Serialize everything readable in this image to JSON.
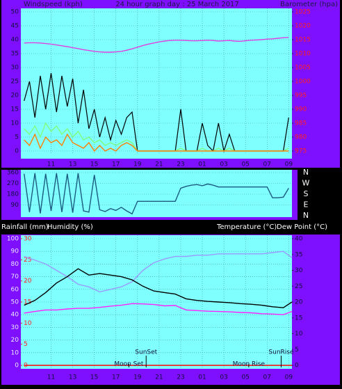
{
  "chart_data": [
    {
      "type": "line",
      "title": "24 hour graph day : 25 March 2017",
      "y_label": "Windspeed (kph)",
      "y2_label": "Barometer (hpa)",
      "x": [
        8.5,
        9,
        9.5,
        10,
        10.5,
        11,
        11.5,
        12,
        12.5,
        13,
        13.5,
        14,
        14.5,
        15,
        15.5,
        16,
        16.5,
        17,
        17.5,
        18,
        18.5,
        19,
        19.5,
        20,
        20.5,
        21,
        21.5,
        22,
        22.5,
        23,
        23.5,
        24,
        24.5,
        25,
        25.5,
        26,
        26.5,
        27,
        27.5,
        28,
        28.5,
        29,
        29.5,
        30,
        30.5,
        31,
        31.5,
        32,
        32.5,
        33
      ],
      "xlim": [
        8.2,
        33.3
      ],
      "xticks": [
        11,
        13,
        15,
        17,
        19,
        21,
        23,
        {
          "value": 25,
          "label": "01"
        },
        {
          "value": 27,
          "label": "03"
        },
        {
          "value": 29,
          "label": "05"
        },
        {
          "value": 31,
          "label": "07"
        },
        {
          "value": 33,
          "label": "09"
        }
      ],
      "ylim": [
        0,
        50
      ],
      "yticks": [
        0,
        5,
        10,
        15,
        20,
        25,
        30,
        35,
        40,
        45,
        50
      ],
      "y2lim": [
        975,
        1025
      ],
      "y2ticks": [
        975,
        980,
        985,
        990,
        995,
        1000,
        1005,
        1010,
        1015,
        1020,
        1025
      ],
      "grid": true,
      "series": [
        {
          "color": "#000000",
          "values": [
            18,
            25,
            12,
            27,
            15,
            28,
            14,
            27,
            16,
            26,
            10,
            22,
            8,
            15,
            5,
            12,
            4,
            11,
            6,
            12,
            14,
            0,
            0,
            0,
            0,
            0,
            0,
            0,
            0,
            15,
            0,
            0,
            0,
            10,
            2,
            0,
            10,
            0,
            6,
            0,
            0,
            0,
            0,
            0,
            0,
            0,
            0,
            0,
            0,
            12
          ]
        },
        {
          "color": "#80ff80",
          "values": [
            8,
            6,
            9,
            5,
            10,
            7,
            9,
            6,
            8,
            5,
            7,
            4,
            5,
            3,
            4,
            2,
            3,
            2,
            3,
            4,
            3,
            0,
            0,
            0,
            0,
            0,
            0,
            0,
            0,
            1,
            0,
            0,
            0,
            1,
            0,
            0,
            1,
            0,
            1,
            0,
            0,
            0,
            0,
            0,
            0,
            0,
            0,
            0,
            0,
            1
          ]
        },
        {
          "color": "#ff8000",
          "values": [
            4,
            2,
            6,
            1,
            5,
            3,
            4,
            2,
            6,
            3,
            2,
            1,
            3,
            0,
            2,
            0,
            1,
            0,
            2,
            3,
            2,
            0,
            0,
            0,
            0,
            0,
            0,
            0,
            0,
            0,
            0,
            0,
            0,
            0,
            0,
            0,
            0,
            0,
            0,
            0,
            0,
            0,
            0,
            0,
            0,
            0,
            0,
            0,
            0,
            0
          ]
        },
        {
          "color": "#e040e0",
          "axis": "y2",
          "values": [
            1013.8,
            1013.9,
            1013.9,
            1013.8,
            1013.6,
            1013.4,
            1013.1,
            1012.8,
            1012.5,
            1012.1,
            1011.8,
            1011.4,
            1011.1,
            1010.8,
            1010.6,
            1010.5,
            1010.5,
            1010.6,
            1010.8,
            1011.2,
            1011.7,
            1012.3,
            1012.9,
            1013.4,
            1013.8,
            1014.2,
            1014.5,
            1014.7,
            1014.8,
            1014.8,
            1014.7,
            1014.6,
            1014.6,
            1014.7,
            1014.8,
            1014.7,
            1014.5,
            1014.6,
            1014.7,
            1014.5,
            1014.4,
            1014.6,
            1014.8,
            1014.9,
            1015.0,
            1015.2,
            1015.3,
            1015.5,
            1015.7,
            1015.8
          ]
        }
      ]
    },
    {
      "type": "line",
      "x": [
        8.5,
        9,
        9.5,
        10,
        10.5,
        11,
        11.5,
        12,
        12.5,
        13,
        13.5,
        14,
        14.5,
        15,
        15.5,
        16,
        16.5,
        17,
        17.5,
        18,
        18.5,
        19,
        19.5,
        20,
        20.5,
        21,
        21.5,
        22,
        22.5,
        23,
        23.5,
        24,
        24.5,
        25,
        25.5,
        26,
        26.5,
        27,
        27.5,
        28,
        28.5,
        29,
        29.5,
        30,
        30.5,
        31,
        31.5,
        32,
        32.5,
        33
      ],
      "xlim": [
        8.2,
        33.3
      ],
      "ylim": [
        0,
        360
      ],
      "yticks": [
        90,
        180,
        270,
        360
      ],
      "compass": [
        "N",
        "W",
        "S",
        "E",
        "N"
      ],
      "grid": true,
      "series": [
        {
          "color": "#1a5a80",
          "values": [
            350,
            30,
            355,
            20,
            350,
            40,
            355,
            30,
            350,
            25,
            355,
            40,
            30,
            340,
            50,
            35,
            60,
            45,
            70,
            40,
            15,
            120,
            120,
            120,
            120,
            120,
            120,
            120,
            120,
            230,
            245,
            255,
            260,
            250,
            265,
            255,
            240,
            240,
            240,
            240,
            240,
            240,
            240,
            240,
            240,
            240,
            150,
            150,
            155,
            230
          ]
        }
      ]
    },
    {
      "type": "line",
      "y_label": "Humidity (%)",
      "y3_label": "Rainfall (mm)",
      "y2_labels": [
        "Temperature (°C)",
        "Dew Point (°C)"
      ],
      "x": [
        8.5,
        9.5,
        10.5,
        11.5,
        12.5,
        13.5,
        14.5,
        15.5,
        16.5,
        17.5,
        18.5,
        19.5,
        20.5,
        21.5,
        22.5,
        23.5,
        24.5,
        25.5,
        26.5,
        27.5,
        28.5,
        29.5,
        30.5,
        31.5,
        32.5,
        33.3
      ],
      "xlim": [
        8.2,
        33.3
      ],
      "xticks": [
        11,
        13,
        15,
        17,
        19,
        21,
        23,
        {
          "value": 25,
          "label": "01"
        },
        {
          "value": 27,
          "label": "03"
        },
        {
          "value": 29,
          "label": "05"
        },
        {
          "value": 31,
          "label": "07"
        },
        {
          "value": 33,
          "label": "09"
        }
      ],
      "ylim": [
        0,
        100
      ],
      "yticks": [
        0,
        10,
        20,
        30,
        40,
        50,
        60,
        70,
        80,
        90,
        100
      ],
      "y2lim": [
        0,
        40
      ],
      "y2ticks": [
        0,
        5,
        10,
        15,
        20,
        25,
        30,
        35,
        40
      ],
      "y3lim": [
        0,
        30
      ],
      "y3ticks": [
        0,
        5,
        10,
        15,
        20,
        25,
        30
      ],
      "grid": true,
      "annotations": [
        {
          "text": "SunSet",
          "x": 19.8,
          "row": 0
        },
        {
          "text": "SunRise",
          "x": 32.3,
          "row": 0
        },
        {
          "text": "Moon Set",
          "x": 18.2,
          "row": 1
        },
        {
          "text": "Moon Rise",
          "x": 29.3,
          "row": 1
        }
      ],
      "series": [
        {
          "color": "#9a9aff",
          "values": [
            86,
            83,
            80,
            75,
            70,
            64,
            62,
            58,
            60,
            62,
            66,
            75,
            81,
            84,
            86,
            86,
            87,
            87,
            88,
            88,
            88,
            88,
            88,
            89,
            90,
            85
          ]
        },
        {
          "color": "#000000",
          "axis": "y2",
          "values": [
            19,
            20.5,
            23,
            26,
            28,
            30.5,
            28.5,
            29,
            28.5,
            28,
            27,
            25,
            23.5,
            23,
            22.5,
            21,
            20.5,
            20.2,
            20,
            19.8,
            19.5,
            19.3,
            19,
            18.5,
            18.2,
            20
          ]
        },
        {
          "color": "#ff20ff",
          "axis": "y2",
          "values": [
            16.5,
            17,
            17.5,
            17.5,
            17.8,
            18,
            18,
            18.3,
            18.7,
            19,
            19.5,
            19.4,
            19.2,
            18.8,
            18.9,
            17.5,
            17.3,
            17.1,
            17,
            16.9,
            16.7,
            16.6,
            16.3,
            16.2,
            16,
            17
          ]
        },
        {
          "color": "#ff0000",
          "axis": "y3",
          "values": [
            0,
            0,
            0,
            0,
            0,
            0,
            0,
            0,
            0,
            0,
            0,
            0,
            0,
            0,
            0,
            0,
            0,
            0,
            0,
            0,
            0,
            0,
            0,
            0,
            0,
            0
          ]
        }
      ]
    }
  ]
}
